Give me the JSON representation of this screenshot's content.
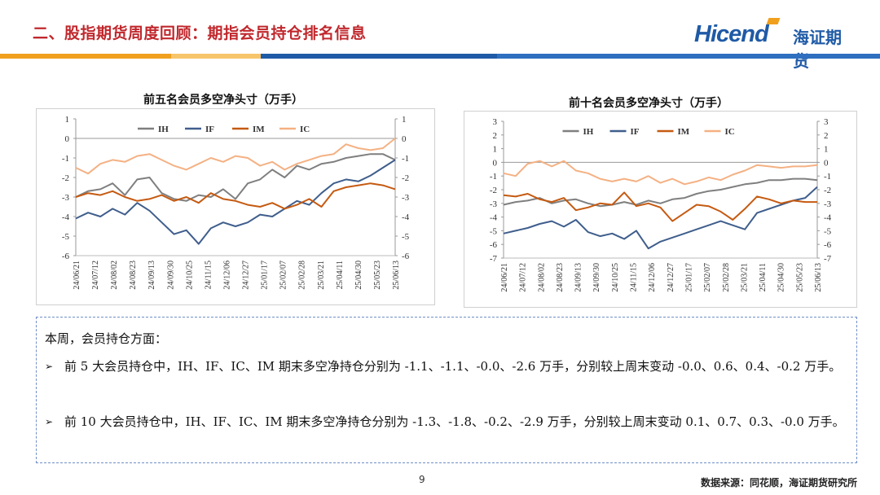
{
  "header": {
    "title": "二、股指期货周度回顾：期指会员持仓排名信息",
    "logo_en": "Hicend",
    "logo_cn": "海证期货"
  },
  "colors": {
    "IH": "#7f7f7f",
    "IF": "#3f5e8c",
    "IM": "#c55a11",
    "IC": "#f4b183",
    "accent_red": "#c0282d",
    "accent_blue": "#1f5aa6",
    "accent_orange": "#f0a01e"
  },
  "chart_data": [
    {
      "type": "line",
      "title": "前五名会员多空净头寸（万手）",
      "x_labels": [
        "24/06/21",
        "24/07/12",
        "24/08/02",
        "24/08/23",
        "24/09/13",
        "24/09/30",
        "24/10/25",
        "24/11/15",
        "24/12/06",
        "24/12/27",
        "25/01/17",
        "25/02/07",
        "25/02/28",
        "25/03/21",
        "25/04/11",
        "25/04/30",
        "25/05/23",
        "25/06/13"
      ],
      "ylim": [
        -6,
        1
      ],
      "yticks": [
        1,
        0,
        -1,
        -2,
        -3,
        -4,
        -5,
        -6
      ],
      "series": [
        {
          "name": "IH",
          "values": [
            -3.0,
            -2.7,
            -2.6,
            -2.3,
            -2.9,
            -2.1,
            -2.0,
            -2.8,
            -3.1,
            -3.2,
            -2.9,
            -3.0,
            -2.6,
            -3.1,
            -2.3,
            -2.1,
            -1.6,
            -2.0,
            -1.4,
            -1.6,
            -1.3,
            -1.2,
            -1.0,
            -0.9,
            -0.8,
            -0.8,
            -1.1
          ]
        },
        {
          "name": "IF",
          "values": [
            -4.1,
            -3.8,
            -4.0,
            -3.6,
            -3.9,
            -3.3,
            -3.7,
            -4.3,
            -4.9,
            -4.7,
            -5.4,
            -4.6,
            -4.3,
            -4.5,
            -4.3,
            -3.9,
            -4.0,
            -3.6,
            -3.2,
            -3.4,
            -2.8,
            -2.3,
            -2.1,
            -2.2,
            -1.9,
            -1.5,
            -1.1
          ]
        },
        {
          "name": "IM",
          "values": [
            -3.0,
            -2.8,
            -2.9,
            -2.7,
            -3.0,
            -3.2,
            -3.1,
            -2.9,
            -3.2,
            -3.0,
            -3.3,
            -2.8,
            -3.1,
            -3.2,
            -3.4,
            -3.5,
            -3.3,
            -3.6,
            -3.4,
            -3.1,
            -3.5,
            -2.7,
            -2.5,
            -2.4,
            -2.3,
            -2.4,
            -2.6
          ]
        },
        {
          "name": "IC",
          "values": [
            -1.5,
            -1.8,
            -1.3,
            -1.1,
            -1.2,
            -0.9,
            -0.8,
            -1.1,
            -1.4,
            -1.6,
            -1.3,
            -1.0,
            -1.2,
            -0.9,
            -1.0,
            -1.4,
            -1.2,
            -1.6,
            -1.3,
            -1.1,
            -0.9,
            -0.8,
            -0.3,
            -0.5,
            -0.6,
            -0.5,
            0.0
          ]
        }
      ]
    },
    {
      "type": "line",
      "title": "前十名会员多空净头寸（万手）",
      "x_labels": [
        "24/06/21",
        "24/07/12",
        "24/08/02",
        "24/08/23",
        "24/09/13",
        "24/09/30",
        "24/10/25",
        "24/11/15",
        "24/12/06",
        "24/12/27",
        "25/01/17",
        "25/02/07",
        "25/02/28",
        "25/03/21",
        "25/04/11",
        "25/04/30",
        "25/05/23",
        "25/06/13"
      ],
      "ylim": [
        -7,
        3
      ],
      "yticks": [
        3,
        2,
        1,
        0,
        -1,
        -2,
        -3,
        -4,
        -5,
        -6,
        -7
      ],
      "series": [
        {
          "name": "IH",
          "values": [
            -3.1,
            -2.9,
            -2.8,
            -2.6,
            -3.0,
            -2.8,
            -2.7,
            -3.0,
            -3.2,
            -3.1,
            -2.9,
            -3.1,
            -2.8,
            -3.0,
            -2.7,
            -2.6,
            -2.3,
            -2.1,
            -2.0,
            -1.8,
            -1.6,
            -1.5,
            -1.3,
            -1.3,
            -1.2,
            -1.2,
            -1.3
          ]
        },
        {
          "name": "IF",
          "values": [
            -5.2,
            -5.0,
            -4.8,
            -4.5,
            -4.3,
            -4.7,
            -4.2,
            -5.1,
            -5.4,
            -5.2,
            -5.6,
            -5.0,
            -6.3,
            -5.8,
            -5.5,
            -5.2,
            -4.9,
            -4.6,
            -4.3,
            -4.6,
            -4.9,
            -3.7,
            -3.4,
            -3.1,
            -2.8,
            -2.6,
            -1.8
          ]
        },
        {
          "name": "IM",
          "values": [
            -2.4,
            -2.5,
            -2.3,
            -2.7,
            -2.9,
            -2.6,
            -3.5,
            -3.3,
            -3.0,
            -3.1,
            -2.2,
            -3.2,
            -3.0,
            -3.3,
            -4.3,
            -3.7,
            -3.1,
            -3.2,
            -3.6,
            -4.2,
            -3.4,
            -2.5,
            -2.7,
            -3.0,
            -2.8,
            -2.9,
            -2.9
          ]
        },
        {
          "name": "IC",
          "values": [
            -0.8,
            -1.0,
            -0.1,
            0.1,
            -0.3,
            0.1,
            -0.6,
            -0.8,
            -1.2,
            -1.4,
            -1.2,
            -1.4,
            -1.0,
            -1.5,
            -1.2,
            -1.6,
            -1.4,
            -1.1,
            -1.3,
            -0.9,
            -0.6,
            -0.2,
            -0.3,
            -0.4,
            -0.3,
            -0.3,
            -0.2
          ]
        }
      ]
    }
  ],
  "summary": {
    "heading": "本周，会员持仓方面：",
    "bullets": [
      "前 5 大会员持仓中，IH、IF、IC、IM 期末多空净持仓分别为 -1.1、-1.1、-0.0、-2.6 万手，分别较上周末变动 -0.0、0.6、0.4、-0.2 万手。",
      "前 10 大会员持仓中，IH、IF、IC、IM 期末多空净持仓分别为 -1.3、-1.8、-0.2、-2.9 万手，分别较上周末变动 0.1、0.7、0.3、-0.0 万手。"
    ]
  },
  "footer": {
    "page": "9",
    "source": "数据来源：同花顺，海证期货研究所"
  }
}
